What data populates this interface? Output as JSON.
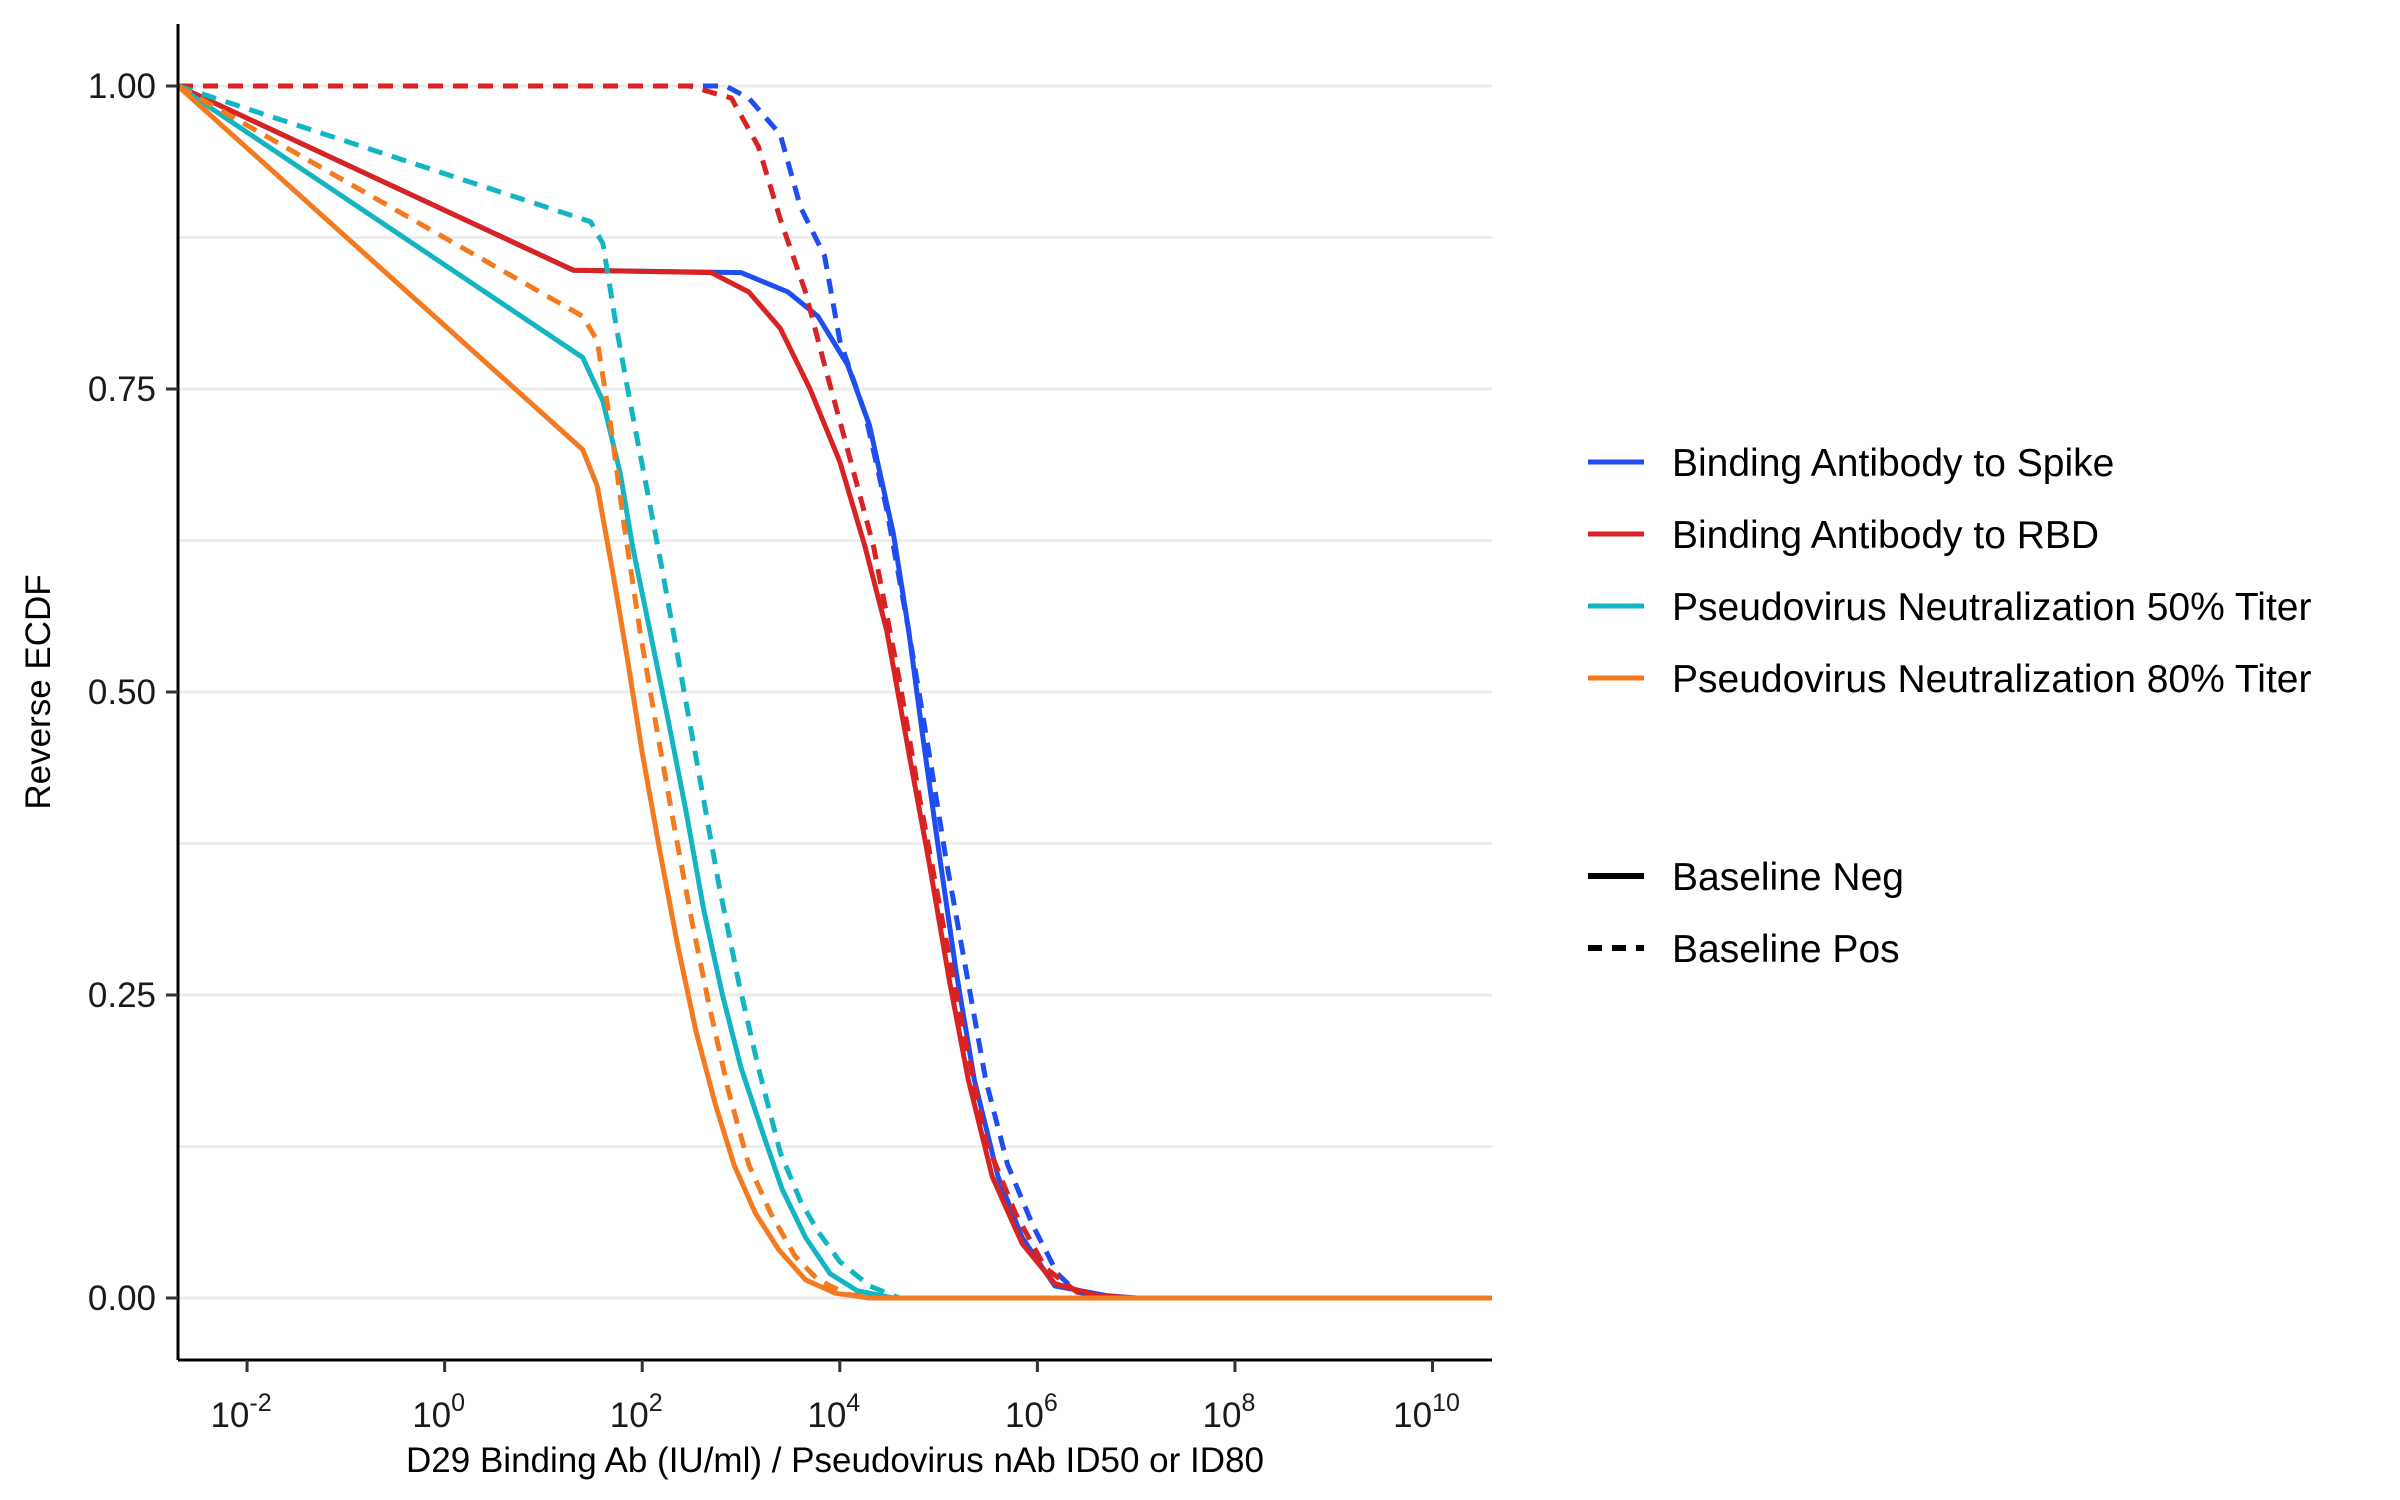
{
  "chart_data": {
    "type": "line",
    "xlabel": "D29 Binding Ab (IU/ml) / Pseudovirus nAb ID50 or ID80",
    "ylabel": "Reverse ECDF",
    "x_scale": "log10",
    "xlim": [
      0.002,
      40000000000.0
    ],
    "ylim": [
      0,
      1
    ],
    "x_ticks": [
      {
        "value": 0.01,
        "base": "10",
        "exp": "-2"
      },
      {
        "value": 1,
        "base": "10",
        "exp": "0"
      },
      {
        "value": 100,
        "base": "10",
        "exp": "2"
      },
      {
        "value": 10000,
        "base": "10",
        "exp": "4"
      },
      {
        "value": 1000000,
        "base": "10",
        "exp": "6"
      },
      {
        "value": 100000000,
        "base": "10",
        "exp": "8"
      },
      {
        "value": 10000000000,
        "base": "10",
        "exp": "10"
      }
    ],
    "y_ticks": [
      {
        "value": 0,
        "label": "0.00"
      },
      {
        "value": 0.25,
        "label": "0.25"
      },
      {
        "value": 0.5,
        "label": "0.50"
      },
      {
        "value": 0.75,
        "label": "0.75"
      },
      {
        "value": 1,
        "label": "1.00"
      }
    ],
    "grid": {
      "horizontal_major": true,
      "horizontal_minor": true,
      "vertical": false
    },
    "legend_position": "right",
    "color_legend": [
      {
        "name": "Binding Antibody to Spike",
        "color": "#1f4ef0"
      },
      {
        "name": "Binding Antibody to RBD",
        "color": "#d92323"
      },
      {
        "name": "Pseudovirus Neutralization 50% Titer",
        "color": "#13b5c3"
      },
      {
        "name": "Pseudovirus Neutralization 80% Titer",
        "color": "#f47a20"
      }
    ],
    "linetype_legend": [
      {
        "name": "Baseline Neg",
        "dash": "solid"
      },
      {
        "name": "Baseline Pos",
        "dash": "dashed"
      }
    ],
    "series": [
      {
        "marker": "Binding Antibody to Spike",
        "baseline": "Baseline Neg",
        "color": "#1f4ef0",
        "dash": "solid",
        "points": [
          [
            0.002,
            1.0
          ],
          [
            20,
            0.848
          ],
          [
            1000,
            0.846
          ],
          [
            3000,
            0.83
          ],
          [
            6000,
            0.81
          ],
          [
            12000,
            0.77
          ],
          [
            20000,
            0.72
          ],
          [
            35000,
            0.63
          ],
          [
            50000,
            0.55
          ],
          [
            70000,
            0.46
          ],
          [
            100000,
            0.37
          ],
          [
            150000,
            0.27
          ],
          [
            230000,
            0.18
          ],
          [
            400000,
            0.1
          ],
          [
            700000,
            0.05
          ],
          [
            1500000,
            0.01
          ],
          [
            5000000,
            0.002
          ],
          [
            10000000,
            0.0
          ],
          [
            40000000000,
            0.0
          ]
        ]
      },
      {
        "marker": "Binding Antibody to Spike",
        "baseline": "Baseline Pos",
        "color": "#1f4ef0",
        "dash": "dashed",
        "points": [
          [
            0.002,
            1.0
          ],
          [
            700,
            1.0
          ],
          [
            1200,
            0.99
          ],
          [
            2500,
            0.96
          ],
          [
            4000,
            0.9
          ],
          [
            7000,
            0.86
          ],
          [
            10000,
            0.79
          ],
          [
            18000,
            0.73
          ],
          [
            30000,
            0.65
          ],
          [
            50000,
            0.55
          ],
          [
            80000,
            0.45
          ],
          [
            120000,
            0.36
          ],
          [
            200000,
            0.26
          ],
          [
            300000,
            0.18
          ],
          [
            500000,
            0.11
          ],
          [
            900000,
            0.06
          ],
          [
            1600000,
            0.02
          ],
          [
            2500000,
            0.005
          ],
          [
            5000000,
            0.0
          ],
          [
            40000000000,
            0.0
          ]
        ]
      },
      {
        "marker": "Binding Antibody to RBD",
        "baseline": "Baseline Neg",
        "color": "#d92323",
        "dash": "solid",
        "points": [
          [
            0.002,
            1.0
          ],
          [
            20,
            0.848
          ],
          [
            500,
            0.846
          ],
          [
            1200,
            0.83
          ],
          [
            2500,
            0.8
          ],
          [
            5000,
            0.75
          ],
          [
            10000,
            0.69
          ],
          [
            18000,
            0.62
          ],
          [
            30000,
            0.55
          ],
          [
            50000,
            0.45
          ],
          [
            80000,
            0.36
          ],
          [
            130000,
            0.26
          ],
          [
            200000,
            0.18
          ],
          [
            350000,
            0.1
          ],
          [
            700000,
            0.045
          ],
          [
            1500000,
            0.012
          ],
          [
            4000000,
            0.002
          ],
          [
            10000000,
            0.0
          ],
          [
            40000000000,
            0.0
          ]
        ]
      },
      {
        "marker": "Binding Antibody to RBD",
        "baseline": "Baseline Pos",
        "color": "#d92323",
        "dash": "dashed",
        "points": [
          [
            0.002,
            1.0
          ],
          [
            300,
            1.0
          ],
          [
            800,
            0.99
          ],
          [
            1500,
            0.95
          ],
          [
            2500,
            0.89
          ],
          [
            4500,
            0.83
          ],
          [
            7000,
            0.77
          ],
          [
            12000,
            0.7
          ],
          [
            22000,
            0.62
          ],
          [
            40000,
            0.51
          ],
          [
            65000,
            0.41
          ],
          [
            110000,
            0.31
          ],
          [
            180000,
            0.22
          ],
          [
            300000,
            0.13
          ],
          [
            600000,
            0.07
          ],
          [
            1200000,
            0.025
          ],
          [
            2500000,
            0.005
          ],
          [
            6000000,
            0.0
          ],
          [
            40000000000,
            0.0
          ]
        ]
      },
      {
        "marker": "Pseudovirus Neutralization 50% Titer",
        "baseline": "Baseline Neg",
        "color": "#13b5c3",
        "dash": "solid",
        "points": [
          [
            0.002,
            1.0
          ],
          [
            25,
            0.776
          ],
          [
            40,
            0.74
          ],
          [
            60,
            0.68
          ],
          [
            80,
            0.62
          ],
          [
            120,
            0.55
          ],
          [
            180,
            0.48
          ],
          [
            280,
            0.4
          ],
          [
            420,
            0.32
          ],
          [
            650,
            0.25
          ],
          [
            1000,
            0.19
          ],
          [
            1600,
            0.14
          ],
          [
            2600,
            0.09
          ],
          [
            4500,
            0.05
          ],
          [
            8000,
            0.02
          ],
          [
            15000,
            0.006
          ],
          [
            35000,
            0.0
          ],
          [
            40000000000,
            0.0
          ]
        ]
      },
      {
        "marker": "Pseudovirus Neutralization 50% Titer",
        "baseline": "Baseline Pos",
        "color": "#13b5c3",
        "dash": "dashed",
        "points": [
          [
            0.002,
            1.0
          ],
          [
            30,
            0.888
          ],
          [
            40,
            0.87
          ],
          [
            55,
            0.8
          ],
          [
            75,
            0.74
          ],
          [
            110,
            0.67
          ],
          [
            160,
            0.6
          ],
          [
            240,
            0.52
          ],
          [
            380,
            0.43
          ],
          [
            600,
            0.34
          ],
          [
            950,
            0.26
          ],
          [
            1500,
            0.19
          ],
          [
            2500,
            0.12
          ],
          [
            4000,
            0.08
          ],
          [
            6000,
            0.055
          ],
          [
            10000,
            0.03
          ],
          [
            20000,
            0.01
          ],
          [
            40000,
            0.0
          ],
          [
            40000000000,
            0.0
          ]
        ]
      },
      {
        "marker": "Pseudovirus Neutralization 80% Titer",
        "baseline": "Baseline Neg",
        "color": "#f47a20",
        "dash": "solid",
        "points": [
          [
            0.002,
            1.0
          ],
          [
            25,
            0.7
          ],
          [
            35,
            0.67
          ],
          [
            50,
            0.6
          ],
          [
            70,
            0.53
          ],
          [
            100,
            0.45
          ],
          [
            150,
            0.37
          ],
          [
            230,
            0.29
          ],
          [
            350,
            0.22
          ],
          [
            550,
            0.16
          ],
          [
            850,
            0.11
          ],
          [
            1400,
            0.07
          ],
          [
            2400,
            0.04
          ],
          [
            4500,
            0.015
          ],
          [
            9000,
            0.004
          ],
          [
            20000,
            0.0
          ],
          [
            40000000000,
            0.0
          ]
        ]
      },
      {
        "marker": "Pseudovirus Neutralization 80% Titer",
        "baseline": "Baseline Pos",
        "color": "#f47a20",
        "dash": "dashed",
        "points": [
          [
            0.002,
            1.0
          ],
          [
            25,
            0.81
          ],
          [
            35,
            0.79
          ],
          [
            48,
            0.72
          ],
          [
            65,
            0.64
          ],
          [
            95,
            0.55
          ],
          [
            140,
            0.47
          ],
          [
            210,
            0.39
          ],
          [
            320,
            0.31
          ],
          [
            480,
            0.24
          ],
          [
            750,
            0.17
          ],
          [
            1200,
            0.11
          ],
          [
            2000,
            0.07
          ],
          [
            3500,
            0.035
          ],
          [
            6000,
            0.015
          ],
          [
            12000,
            0.003
          ],
          [
            25000,
            0.0
          ],
          [
            40000000000,
            0.0
          ]
        ]
      }
    ]
  }
}
